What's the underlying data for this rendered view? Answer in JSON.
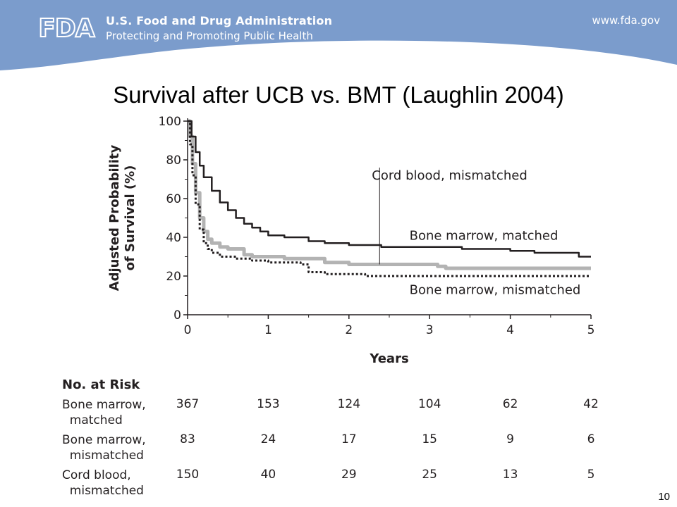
{
  "header": {
    "logo_text": "FDA",
    "org_name": "U.S. Food and Drug Administration",
    "tagline": "Protecting and Promoting Public Health",
    "url": "www.fda.gov",
    "color": "#7b9ccc"
  },
  "slide": {
    "title": "Survival after UCB vs. BMT (Laughlin 2004)",
    "page_number": "10"
  },
  "chart_data": {
    "type": "line",
    "title": "",
    "xlabel": "Years",
    "ylabel": "Adjusted Probability of Survival (%)",
    "xlim": [
      0,
      5
    ],
    "ylim": [
      0,
      100
    ],
    "x_ticks": [
      "0",
      "1",
      "2",
      "3",
      "4",
      "5"
    ],
    "y_ticks": [
      "0",
      "20",
      "40",
      "60",
      "80",
      "100"
    ],
    "grid": false,
    "series": [
      {
        "name": "Bone marrow, matched",
        "style": "solid-dark",
        "color": "#231f20",
        "points": [
          [
            0,
            100
          ],
          [
            0.05,
            92
          ],
          [
            0.1,
            84
          ],
          [
            0.15,
            77
          ],
          [
            0.2,
            71
          ],
          [
            0.3,
            64
          ],
          [
            0.4,
            58
          ],
          [
            0.5,
            54
          ],
          [
            0.6,
            50
          ],
          [
            0.7,
            47
          ],
          [
            0.8,
            45
          ],
          [
            0.9,
            43
          ],
          [
            1.0,
            41
          ],
          [
            1.2,
            40
          ],
          [
            1.5,
            38
          ],
          [
            1.7,
            37
          ],
          [
            2.0,
            36
          ],
          [
            2.4,
            35
          ],
          [
            3.0,
            35
          ],
          [
            3.4,
            34
          ],
          [
            3.8,
            34
          ],
          [
            4.0,
            33
          ],
          [
            4.3,
            32
          ],
          [
            4.7,
            32
          ],
          [
            4.85,
            30
          ],
          [
            5.0,
            30
          ]
        ]
      },
      {
        "name": "Cord blood, mismatched",
        "style": "solid-gray-thick",
        "color": "#b3b3b3",
        "points": [
          [
            0,
            100
          ],
          [
            0.03,
            92
          ],
          [
            0.06,
            78
          ],
          [
            0.1,
            63
          ],
          [
            0.15,
            50
          ],
          [
            0.2,
            43
          ],
          [
            0.25,
            39
          ],
          [
            0.3,
            37
          ],
          [
            0.4,
            35
          ],
          [
            0.5,
            34
          ],
          [
            0.7,
            31
          ],
          [
            0.8,
            30
          ],
          [
            1.0,
            30
          ],
          [
            1.2,
            29
          ],
          [
            1.5,
            29
          ],
          [
            1.7,
            27
          ],
          [
            2.0,
            26
          ],
          [
            2.5,
            26
          ],
          [
            3.0,
            26
          ],
          [
            3.1,
            25
          ],
          [
            3.2,
            24
          ],
          [
            4.0,
            24
          ],
          [
            5.0,
            24
          ]
        ]
      },
      {
        "name": "Bone marrow, mismatched",
        "style": "dotted-dark",
        "color": "#231f20",
        "points": [
          [
            0,
            100
          ],
          [
            0.03,
            88
          ],
          [
            0.06,
            72
          ],
          [
            0.1,
            57
          ],
          [
            0.15,
            44
          ],
          [
            0.2,
            37
          ],
          [
            0.25,
            34
          ],
          [
            0.3,
            32
          ],
          [
            0.4,
            30
          ],
          [
            0.6,
            29
          ],
          [
            0.8,
            28
          ],
          [
            1.0,
            27
          ],
          [
            1.2,
            27
          ],
          [
            1.4,
            26
          ],
          [
            1.5,
            22
          ],
          [
            1.7,
            21
          ],
          [
            2.0,
            21
          ],
          [
            2.2,
            20
          ],
          [
            3.0,
            20
          ],
          [
            4.0,
            20
          ],
          [
            5.0,
            20
          ]
        ]
      }
    ],
    "annotations": [
      {
        "text": "Cord blood, mismatched",
        "points_to_x": 2.38,
        "points_to_y": 26
      },
      {
        "text": "Bone marrow, matched"
      },
      {
        "text": "Bone marrow, mismatched"
      }
    ]
  },
  "risk_table": {
    "title": "No. at Risk",
    "columns_x": [
      0,
      1,
      2,
      3,
      4,
      5
    ],
    "rows": [
      {
        "label": "Bone marrow,\n  matched",
        "values": [
          "367",
          "153",
          "124",
          "104",
          "62",
          "42"
        ]
      },
      {
        "label": "Bone marrow,\n  mismatched",
        "values": [
          "83",
          "24",
          "17",
          "15",
          "9",
          "6"
        ]
      },
      {
        "label": "Cord blood,\n  mismatched",
        "values": [
          "150",
          "40",
          "29",
          "25",
          "13",
          "5"
        ]
      }
    ]
  }
}
